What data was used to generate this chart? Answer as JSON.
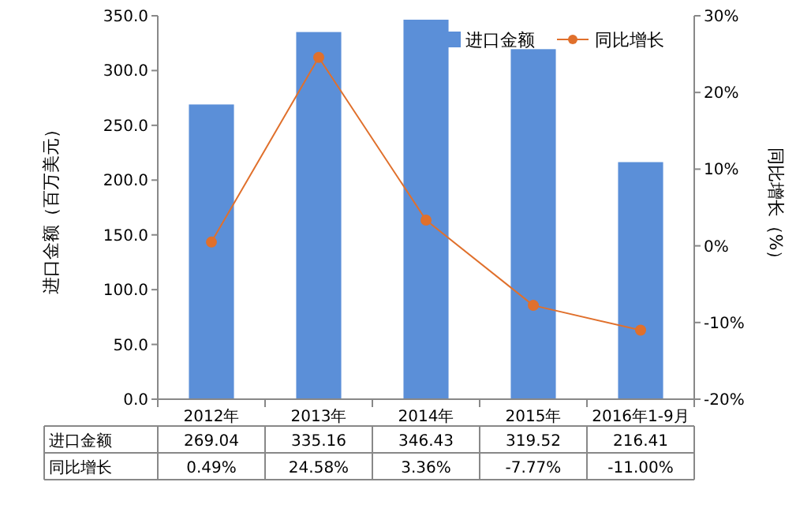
{
  "chart_data": {
    "type": "bar",
    "categories": [
      "2012年",
      "2013年",
      "2014年",
      "2015年",
      "2016年1-9月"
    ],
    "ylabel": "进口金额（百万美元）",
    "y2label": "同比增长（%）",
    "ylim": [
      0,
      350
    ],
    "yticks": [
      {
        "value": 0,
        "label": "0.0"
      },
      {
        "value": 50,
        "label": "50.0"
      },
      {
        "value": 100,
        "label": "100.0"
      },
      {
        "value": 150,
        "label": "150.0"
      },
      {
        "value": 200,
        "label": "200.0"
      },
      {
        "value": 250,
        "label": "250.0"
      },
      {
        "value": 300,
        "label": "300.0"
      },
      {
        "value": 350,
        "label": "350.0"
      }
    ],
    "y2lim": [
      -20,
      30
    ],
    "y2ticks": [
      {
        "value": -20,
        "label": "-20%"
      },
      {
        "value": -10,
        "label": "-10%"
      },
      {
        "value": 0,
        "label": "0%"
      },
      {
        "value": 10,
        "label": "10%"
      },
      {
        "value": 20,
        "label": "20%"
      },
      {
        "value": 30,
        "label": "30%"
      }
    ],
    "series": [
      {
        "name": "进口金额",
        "color": "#5b8fd8",
        "values": [
          269.04,
          335.16,
          346.43,
          319.52,
          216.41
        ],
        "value_labels": [
          "269.04",
          "335.16",
          "346.43",
          "319.52",
          "216.41"
        ]
      },
      {
        "name": "同比增长",
        "type": "line",
        "axis": "y2",
        "color": "#e0702c",
        "marker": "circle",
        "values": [
          0.49,
          24.58,
          3.36,
          -7.77,
          -11.0
        ],
        "value_labels": [
          "0.49%",
          "24.58%",
          "3.36%",
          "-7.77%",
          "-11.00%"
        ]
      }
    ],
    "legend": "top right",
    "grid": false
  }
}
